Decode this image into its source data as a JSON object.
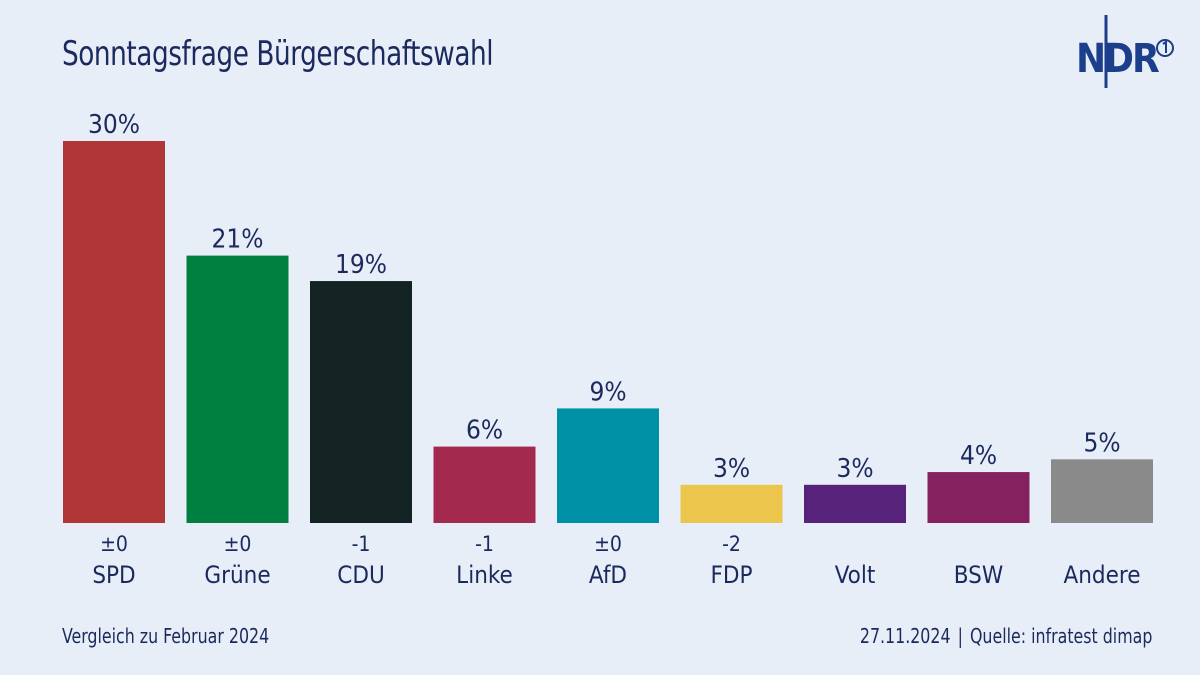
{
  "header": {
    "title": "Sonntagsfrage Bürgerschaftswahl",
    "logo_text": "NDR"
  },
  "footer": {
    "comparison": "Vergleich zu Februar 2024",
    "date": "27.11.2024",
    "separator": "|",
    "source": "Quelle: infratest dimap"
  },
  "chart_data": {
    "type": "bar",
    "title": "Sonntagsfrage Bürgerschaftswahl",
    "xlabel": "",
    "ylabel": "",
    "ylim": [
      0,
      30
    ],
    "grid": false,
    "categories": [
      "SPD",
      "Grüne",
      "CDU",
      "Linke",
      "AfD",
      "FDP",
      "Volt",
      "BSW",
      "Andere"
    ],
    "values": [
      30,
      21,
      19,
      6,
      9,
      3,
      3,
      4,
      5
    ],
    "value_labels": [
      "30%",
      "21%",
      "19%",
      "6%",
      "9%",
      "3%",
      "3%",
      "4%",
      "5%"
    ],
    "changes": [
      "±0",
      "±0",
      "-1",
      "-1",
      "±0",
      "-2",
      "",
      "",
      ""
    ],
    "colors": [
      "#b03536",
      "#008040",
      "#132324",
      "#a3294f",
      "#0091a6",
      "#ecc64c",
      "#56227a",
      "#85215f",
      "#8a8a8a"
    ]
  }
}
